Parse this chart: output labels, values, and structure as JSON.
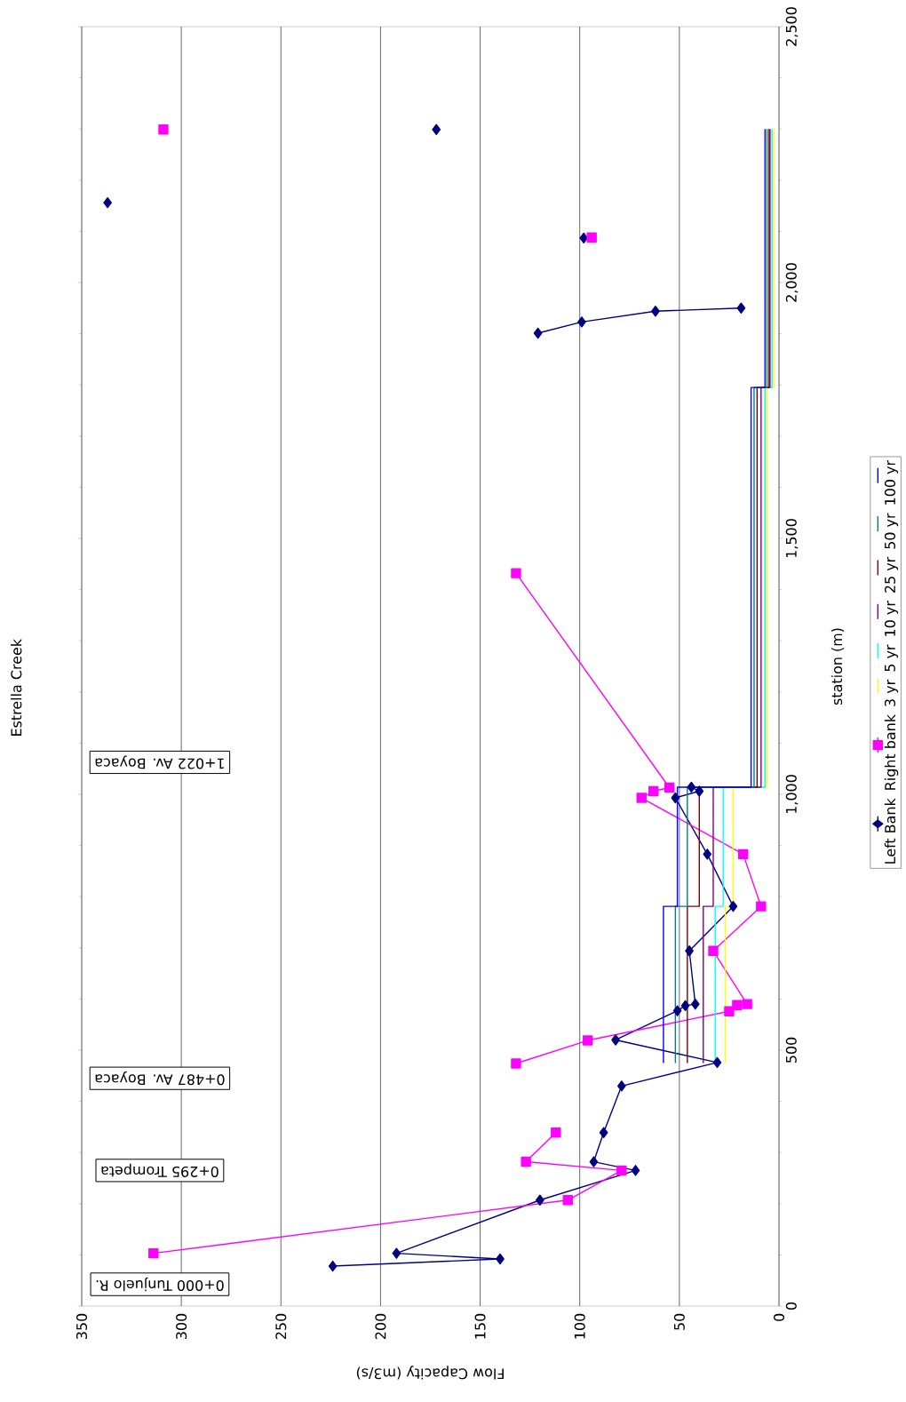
{
  "chart_data": {
    "type": "line",
    "title": "Estrella Creek",
    "xlabel": "Flow Capacity (m3/s)",
    "ylabel": "station (m)",
    "xlim": [
      350,
      0
    ],
    "ylim": [
      0,
      2500
    ],
    "xticks": [
      0,
      50,
      100,
      150,
      200,
      250,
      300,
      350
    ],
    "yticks": [
      0,
      500,
      {
        "value": 1000,
        "label": "1,000"
      },
      {
        "value": 1500,
        "label": "1,500"
      },
      {
        "value": 2000,
        "label": "2,000"
      },
      {
        "value": 2500,
        "label": "2,500"
      }
    ],
    "grid": "x",
    "legend": "right",
    "annotations": [
      "0+000 Tunjuelo R.",
      "0+295 Trompeta",
      "0+487 Av. Boyaca",
      "1+022 Av. Boyaca"
    ],
    "series": [
      {
        "name": "Left Bank",
        "type": "line",
        "color": "#000080",
        "marker": "diamond",
        "values": [
          null,
          78,
          92,
          103,
          207,
          265,
          282,
          339,
          430,
          476,
          520,
          577,
          587,
          590,
          694,
          781,
          883,
          993,
          1006,
          1014,
          null,
          1901,
          1923,
          1944,
          1950,
          null,
          2087,
          null,
          2156,
          null,
          2299
        ],
        "x": [
          null,
          224,
          140,
          192,
          120,
          72,
          93,
          88,
          79,
          31,
          82,
          51,
          47,
          42,
          45,
          23,
          36,
          52,
          40,
          44,
          null,
          121,
          99,
          62,
          19,
          null,
          98,
          null,
          337,
          null,
          172
        ]
      },
      {
        "name": "Right bank",
        "type": "line",
        "color": "#ff00ff",
        "marker": "square",
        "values": [
          null,
          103,
          207,
          265,
          282,
          339,
          null,
          474,
          519,
          576,
          588,
          590,
          694,
          781,
          883,
          993,
          1006,
          1013,
          1432,
          null,
          2088,
          null,
          2299
        ],
        "x": [
          null,
          314,
          106,
          79,
          127,
          112,
          null,
          132,
          96,
          25,
          21,
          16,
          33,
          9,
          18,
          69,
          63,
          55,
          132,
          null,
          94,
          null,
          309
        ]
      },
      {
        "name": "3 yr",
        "type": "step",
        "color": "#ffff00",
        "values": [
          475,
          781,
          1014,
          1795,
          2300
        ],
        "x": [
          27,
          23,
          6,
          2.5,
          2.5
        ]
      },
      {
        "name": "5 yr",
        "type": "step",
        "color": "#00ffff",
        "values": [
          475,
          781,
          1014,
          1795,
          2300
        ],
        "x": [
          32,
          28,
          7,
          3.5,
          3.5
        ]
      },
      {
        "name": "10 yr",
        "type": "step",
        "color": "#800080",
        "values": [
          475,
          781,
          1014,
          1795,
          2300
        ],
        "x": [
          38,
          33,
          9,
          4.5,
          4.5
        ]
      },
      {
        "name": "25 yr",
        "type": "step",
        "color": "#800000",
        "values": [
          475,
          781,
          1014,
          1795,
          2300
        ],
        "x": [
          46,
          40,
          11,
          5,
          5
        ]
      },
      {
        "name": "50 yr",
        "type": "step",
        "color": "#008080",
        "values": [
          475,
          781,
          1014,
          1795,
          2300
        ],
        "x": [
          52,
          46,
          12.5,
          6,
          6
        ]
      },
      {
        "name": "100 yr",
        "type": "step",
        "color": "#0000ff",
        "values": [
          475,
          781,
          1014,
          1795,
          2300
        ],
        "x": [
          58,
          51,
          14,
          7,
          7
        ]
      }
    ]
  }
}
